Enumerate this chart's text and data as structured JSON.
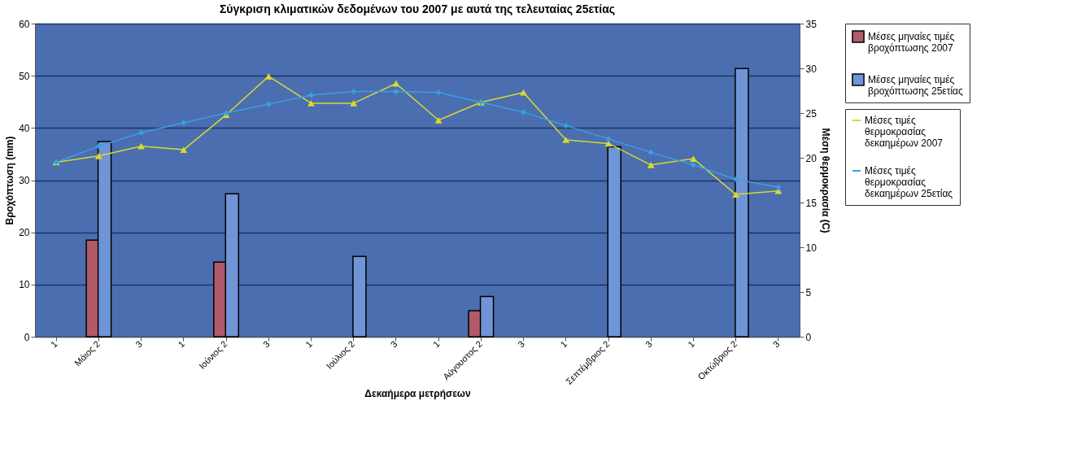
{
  "chart_data": {
    "type": "bar",
    "title": "Σύγκριση κλιματικών δεδομένων του 2007 με αυτά της τελευταίας 25ετίας",
    "xlabel": "Δεκαήμερα μετρήσεων",
    "ylabel": "Βροχόπτωση (mm)",
    "y2label": "Μέση θερμοκρασία (C)",
    "categories": [
      "1",
      "Μάιος 2",
      "3",
      "1",
      "Ιούνιος 2",
      "3",
      "1",
      "Ιούλιος 2",
      "3",
      "1",
      "Αύγουστος 2",
      "3",
      "1",
      "Σεπτέμβριος 2",
      "3",
      "1",
      "Οκτώβριος 2",
      "3"
    ],
    "series": [
      {
        "name": "Μέσες μηναίες τιμές βροχόπτωσης 2007",
        "color": "#b05a6a",
        "values": [
          null,
          18.5,
          null,
          null,
          14.3,
          null,
          null,
          null,
          null,
          null,
          5.0,
          null,
          null,
          null,
          null,
          null,
          null,
          null
        ]
      },
      {
        "name": "Μέσες μηναίες τιμές βροχόπτωσης 25ετίας",
        "color": "#6f95d6",
        "values": [
          null,
          37.4,
          null,
          null,
          27.4,
          null,
          null,
          15.4,
          null,
          null,
          7.7,
          null,
          null,
          36.4,
          null,
          null,
          51.4,
          null
        ]
      },
      {
        "name": "Μέσες τιμές θερμοκρασίας δεκαημέρων 2007",
        "type": "line",
        "axis": "y2",
        "marker": "triangle",
        "color": "#d8d830",
        "values": [
          19.5,
          20.2,
          21.3,
          20.9,
          24.8,
          29.1,
          26.1,
          26.1,
          28.3,
          24.2,
          26.2,
          27.3,
          22.0,
          21.6,
          19.2,
          19.9,
          15.9,
          16.3
        ]
      },
      {
        "name": "Μέσες τιμές θερμοκρασίας δεκαημέρων 25ετίας",
        "type": "line",
        "axis": "y2",
        "marker": "cross",
        "color": "#3aa0e0",
        "values": [
          19.5,
          21.3,
          22.8,
          23.9,
          25.0,
          26.0,
          27.0,
          27.4,
          27.4,
          27.3,
          26.2,
          25.1,
          23.6,
          22.1,
          20.6,
          19.2,
          17.6,
          16.7
        ]
      }
    ],
    "ylim": [
      0,
      60
    ],
    "yticks": [
      0,
      10,
      20,
      30,
      40,
      50,
      60
    ],
    "y2lim": [
      0,
      35
    ],
    "y2ticks": [
      0,
      5,
      10,
      15,
      20,
      25,
      30,
      35
    ],
    "grid": "y",
    "legend": "right"
  }
}
